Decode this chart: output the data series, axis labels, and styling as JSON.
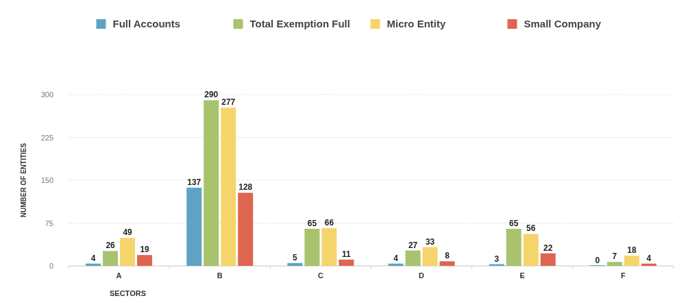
{
  "chart_data": {
    "type": "bar",
    "xlabel": "SECTORS",
    "ylabel": "NUMBER OF ENTITIES",
    "categories": [
      "A",
      "B",
      "C",
      "D",
      "E",
      "F"
    ],
    "series": [
      {
        "name": "Full Accounts",
        "color": "#5fa3c4",
        "values": [
          4,
          137,
          5,
          4,
          3,
          0
        ]
      },
      {
        "name": "Total Exemption Full",
        "color": "#a9c26d",
        "values": [
          26,
          290,
          65,
          27,
          65,
          7
        ]
      },
      {
        "name": "Micro Entity",
        "color": "#f5d46c",
        "values": [
          49,
          277,
          66,
          33,
          56,
          18
        ]
      },
      {
        "name": "Small Company",
        "color": "#de6550",
        "values": [
          19,
          128,
          11,
          8,
          22,
          4
        ]
      }
    ],
    "ylim": [
      0,
      300
    ],
    "yticks": [
      0,
      75,
      150,
      225,
      300
    ],
    "grid": "y",
    "legend": "top",
    "data_labels": true
  }
}
